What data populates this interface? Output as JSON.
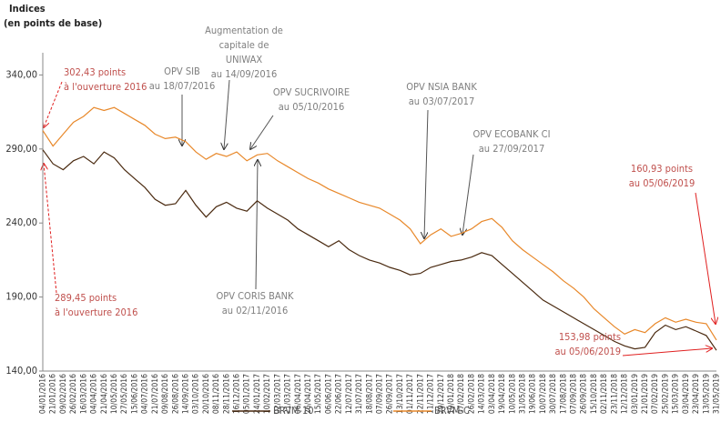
{
  "chart_data": {
    "type": "line",
    "y_label": [
      "Indices",
      "(en points de base)"
    ],
    "categories": [
      "04/01/2016",
      "21/01/2016",
      "09/02/2016",
      "26/02/2016",
      "16/03/2016",
      "04/04/2016",
      "21/04/2016",
      "10/05/2016",
      "27/05/2016",
      "15/06/2016",
      "04/07/2016",
      "21/07/2016",
      "09/08/2016",
      "26/08/2016",
      "14/09/2016",
      "03/10/2016",
      "20/10/2016",
      "08/11/2016",
      "28/11/2016",
      "16/12/2016",
      "05/01/2017",
      "24/01/2017",
      "10/02/2017",
      "02/03/2017",
      "21/03/2017",
      "06/04/2017",
      "26/04/2017",
      "15/05/2017",
      "06/06/2017",
      "22/06/2017",
      "12/07/2017",
      "31/07/2017",
      "18/08/2017",
      "07/09/2017",
      "26/09/2017",
      "13/10/2017",
      "01/11/2017",
      "22/11/2017",
      "11/12/2017",
      "29/12/2017",
      "19/01/2018",
      "07/02/2018",
      "26/02/2018",
      "14/03/2018",
      "03/04/2018",
      "19/04/2018",
      "10/05/2018",
      "31/05/2018",
      "19/06/2018",
      "10/07/2018",
      "30/07/2018",
      "17/08/2018",
      "07/09/2018",
      "26/09/2018",
      "15/10/2018",
      "02/11/2018",
      "23/11/2018",
      "12/12/2018",
      "03/01/2019",
      "21/01/2019",
      "07/02/2019",
      "25/02/2019",
      "15/03/2019",
      "03/04/2019",
      "23/04/2019",
      "13/05/2019",
      "31/05/2019"
    ],
    "series": [
      {
        "name": "BRVM-10",
        "color": "#4a2a10",
        "values": [
          289.45,
          280,
          276,
          282,
          285,
          280,
          288,
          284,
          276,
          270,
          264,
          256,
          252,
          253,
          262,
          252,
          244,
          251,
          254,
          250,
          248,
          255,
          250,
          246,
          242,
          236,
          232,
          228,
          224,
          228,
          222,
          218,
          215,
          213,
          210,
          208,
          205,
          206,
          210,
          212,
          214,
          215,
          217,
          220,
          218,
          212,
          206,
          200,
          194,
          188,
          184,
          180,
          176,
          172,
          168,
          164,
          160,
          157,
          155,
          156,
          166,
          171,
          168,
          170,
          167,
          164,
          153.98
        ]
      },
      {
        "name": "BRVM-C",
        "color": "#e8882a",
        "values": [
          302.43,
          292,
          300,
          308,
          312,
          318,
          316,
          318,
          314,
          310,
          306,
          300,
          297,
          298,
          295,
          288,
          283,
          287,
          285,
          288,
          282,
          286,
          287,
          282,
          278,
          274,
          270,
          267,
          263,
          260,
          257,
          254,
          252,
          250,
          246,
          242,
          236,
          226,
          232,
          236,
          231,
          233,
          236,
          241,
          243,
          237,
          228,
          222,
          217,
          212,
          207,
          201,
          196,
          190,
          182,
          176,
          170,
          165,
          168,
          166,
          172,
          176,
          173,
          175,
          173,
          172,
          160.93
        ]
      }
    ],
    "ylim": [
      140,
      355
    ],
    "yticks": [
      {
        "value": 140,
        "label": "140,00"
      },
      {
        "value": 190,
        "label": "190,00"
      },
      {
        "value": 240,
        "label": "240,00"
      },
      {
        "value": 290,
        "label": "290,00"
      },
      {
        "value": 340,
        "label": "340,00"
      }
    ],
    "annotations": [
      [
        "302,43 points",
        "à l'ouverture 2016"
      ],
      [
        "OPV SIB",
        "au 18/07/2016"
      ],
      [
        "Augmentation de",
        "capitale de",
        "UNIWAX",
        "au 14/09/2016"
      ],
      [
        "OPV SUCRIVOIRE",
        "au 05/10/2016"
      ],
      [
        "OPV NSIA BANK",
        "au 03/07/2017"
      ],
      [
        "OPV ECOBANK CI",
        "au 27/09/2017"
      ],
      [
        "160,93 points",
        "au 05/06/2019"
      ],
      [
        "OPV CORIS BANK",
        "au 02/11/2016"
      ],
      [
        "289,45 points",
        "à l'ouverture 2016"
      ],
      [
        "153,98 points",
        "au 05/06/2019"
      ]
    ]
  }
}
